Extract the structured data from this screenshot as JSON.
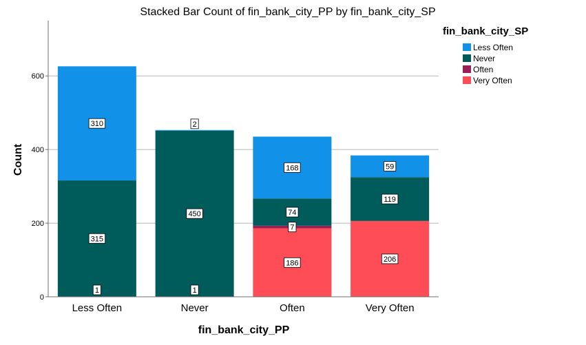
{
  "chart_data": {
    "type": "bar",
    "stacked": true,
    "title": "Stacked Bar Count of fin_bank_city_PP by fin_bank_city_SP",
    "xlabel": "fin_bank_city_PP",
    "ylabel": "Count",
    "ylim": [
      0,
      750
    ],
    "yticks": [
      0,
      200,
      400,
      600
    ],
    "grid": true,
    "legend_title": "fin_bank_city_SP",
    "legend_position": "top-right",
    "categories": [
      "Less Often",
      "Never",
      "Often",
      "Very Often"
    ],
    "series": [
      {
        "name": "Very Often",
        "color": "#fe4d56",
        "values": [
          0,
          0,
          186,
          206
        ]
      },
      {
        "name": "Often",
        "color": "#9a1f55",
        "values": [
          1,
          1,
          7,
          0
        ]
      },
      {
        "name": "Never",
        "color": "#005b5b",
        "values": [
          315,
          450,
          74,
          119
        ]
      },
      {
        "name": "Less Often",
        "color": "#1192e8",
        "values": [
          310,
          2,
          168,
          59
        ]
      }
    ],
    "legend_order": [
      "Less Often",
      "Never",
      "Often",
      "Very Often"
    ]
  }
}
